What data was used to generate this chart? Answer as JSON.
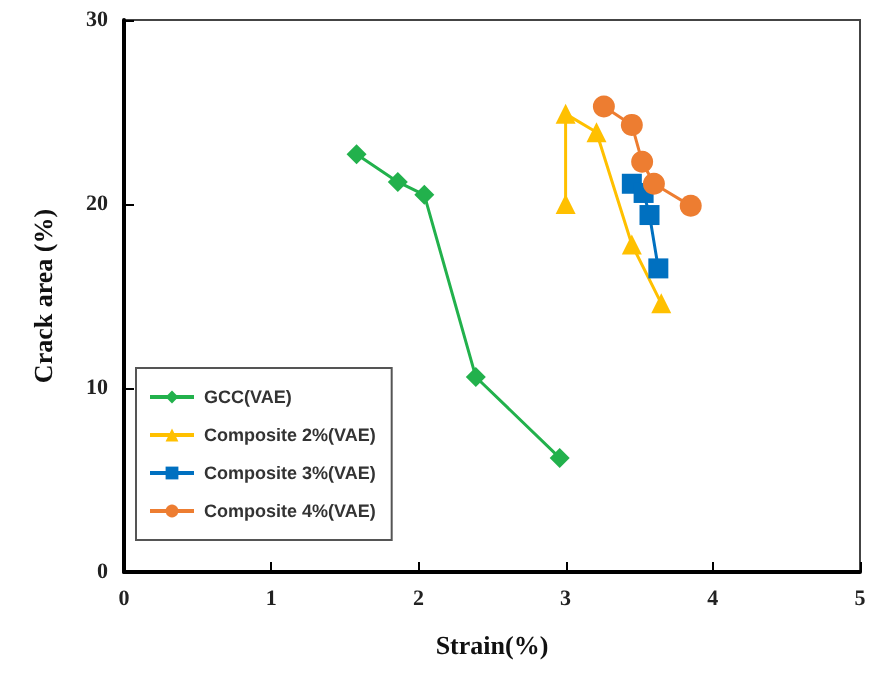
{
  "chart_data": {
    "type": "line",
    "xlabel": "Strain(%)",
    "ylabel": "Crack area (%)",
    "xlim": [
      0,
      5
    ],
    "xticks": [
      0,
      1,
      2,
      3,
      4,
      5
    ],
    "ylim": [
      0,
      30
    ],
    "yticks": [
      0,
      10,
      20,
      30
    ],
    "grid": false,
    "legend": "bottom left",
    "line_style": "solid",
    "series": [
      {
        "name": "GCC(VAE)",
        "color": "#22b14c",
        "marker": "diamond",
        "x": [
          1.58,
          1.86,
          2.04,
          2.39,
          2.96
        ],
        "values": [
          22.7,
          21.2,
          20.5,
          10.6,
          6.2
        ]
      },
      {
        "name": "Composite 2%(VAE)",
        "color": "#ffc000",
        "marker": "triangle",
        "x": [
          3.0,
          3.0,
          3.21,
          3.45,
          3.65
        ],
        "values": [
          20.0,
          24.9,
          23.9,
          17.8,
          14.6
        ]
      },
      {
        "name": "Composite 3%(VAE)",
        "color": "#0070c0",
        "marker": "square",
        "x": [
          3.45,
          3.53,
          3.57,
          3.63
        ],
        "values": [
          21.1,
          20.6,
          19.4,
          16.5
        ]
      },
      {
        "name": "Composite 4%(VAE)",
        "color": "#ed7d31",
        "marker": "circle",
        "x": [
          3.26,
          3.45,
          3.52,
          3.6,
          3.85
        ],
        "values": [
          25.3,
          24.3,
          22.3,
          21.1,
          19.9
        ]
      }
    ]
  }
}
